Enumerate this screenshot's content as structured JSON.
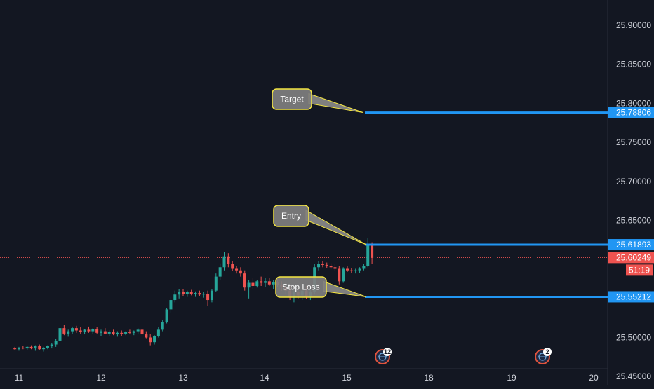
{
  "chart_data": {
    "type": "candlestick",
    "title": "",
    "xlabel": "",
    "ylabel": "",
    "x_tick_labels": [
      "11",
      "12",
      "13",
      "14",
      "15",
      "18",
      "19",
      "20"
    ],
    "y_tick_labels": [
      "25.45000",
      "25.50000",
      "25.55000",
      "25.60000",
      "25.65000",
      "25.70000",
      "25.75000",
      "25.80000",
      "25.85000",
      "25.90000"
    ],
    "ylim": [
      25.455,
      25.95
    ],
    "grid": false,
    "colors": {
      "background": "#131722",
      "up": "#26a69a",
      "down": "#ef5350",
      "level_line": "#2196f3",
      "callout_fill": "#7f7f7f",
      "callout_border": "#f4e542",
      "current_price": "#ef5350",
      "axis_text": "#d1d4dc"
    },
    "levels": [
      {
        "name": "Target",
        "value": 25.78806,
        "label": "25.78806"
      },
      {
        "name": "Entry",
        "value": 25.61893,
        "label": "25.61893"
      },
      {
        "name": "Stop Loss",
        "value": 25.55212,
        "label": "25.55212"
      }
    ],
    "current_price": {
      "value": 25.60249,
      "label": "25.60249",
      "countdown": "51:19"
    },
    "callouts": [
      "Target",
      "Entry",
      "Stop Loss"
    ],
    "event_badges": [
      {
        "day": "15.4",
        "count": "12"
      },
      {
        "day": "19.4",
        "count": "2"
      }
    ],
    "series": [
      {
        "candles": [
          [
            10.95,
            25.486,
            25.488,
            25.484,
            25.485
          ],
          [
            11.0,
            25.485,
            25.488,
            25.483,
            25.487
          ],
          [
            11.05,
            25.487,
            25.489,
            25.485,
            25.486
          ],
          [
            11.1,
            25.486,
            25.489,
            25.484,
            25.488
          ],
          [
            11.15,
            25.488,
            25.49,
            25.485,
            25.486
          ],
          [
            11.2,
            25.486,
            25.49,
            25.483,
            25.489
          ],
          [
            11.25,
            25.489,
            25.491,
            25.484,
            25.485
          ],
          [
            11.3,
            25.485,
            25.488,
            25.482,
            25.487
          ],
          [
            11.35,
            25.487,
            25.49,
            25.485,
            25.489
          ],
          [
            11.4,
            25.489,
            25.493,
            25.486,
            25.491
          ],
          [
            11.45,
            25.491,
            25.498,
            25.488,
            25.496
          ],
          [
            11.5,
            25.496,
            25.518,
            25.494,
            25.512
          ],
          [
            11.55,
            25.512,
            25.516,
            25.503,
            25.505
          ],
          [
            11.6,
            25.505,
            25.51,
            25.501,
            25.508
          ],
          [
            11.65,
            25.508,
            25.514,
            25.504,
            25.512
          ],
          [
            11.7,
            25.512,
            25.515,
            25.506,
            25.509
          ],
          [
            11.75,
            25.509,
            25.513,
            25.505,
            25.507
          ],
          [
            11.8,
            25.507,
            25.511,
            25.504,
            25.51
          ],
          [
            11.85,
            25.51,
            25.514,
            25.506,
            25.508
          ],
          [
            11.9,
            25.508,
            25.512,
            25.505,
            25.511
          ],
          [
            11.95,
            25.511,
            25.513,
            25.505,
            25.506
          ],
          [
            12.0,
            25.506,
            25.51,
            25.502,
            25.508
          ],
          [
            12.05,
            25.508,
            25.512,
            25.504,
            25.505
          ],
          [
            12.1,
            25.505,
            25.509,
            25.502,
            25.507
          ],
          [
            12.15,
            25.507,
            25.51,
            25.503,
            25.504
          ],
          [
            12.2,
            25.504,
            25.508,
            25.501,
            25.506
          ],
          [
            12.25,
            25.506,
            25.509,
            25.502,
            25.505
          ],
          [
            12.3,
            25.505,
            25.508,
            25.503,
            25.507
          ],
          [
            12.35,
            25.507,
            25.51,
            25.504,
            25.506
          ],
          [
            12.4,
            25.506,
            25.509,
            25.503,
            25.508
          ],
          [
            12.45,
            25.508,
            25.512,
            25.505,
            25.51
          ],
          [
            12.5,
            25.51,
            25.513,
            25.503,
            25.504
          ],
          [
            12.55,
            25.504,
            25.508,
            25.499,
            25.5
          ],
          [
            12.6,
            25.5,
            25.504,
            25.49,
            25.494
          ],
          [
            12.65,
            25.494,
            25.503,
            25.491,
            25.502
          ],
          [
            12.7,
            25.502,
            25.513,
            25.5,
            25.51
          ],
          [
            12.75,
            25.51,
            25.522,
            25.508,
            25.52
          ],
          [
            12.8,
            25.52,
            25.538,
            25.518,
            25.536
          ],
          [
            12.85,
            25.536,
            25.552,
            25.532,
            25.548
          ],
          [
            12.9,
            25.548,
            25.56,
            25.545,
            25.555
          ],
          [
            12.95,
            25.555,
            25.562,
            25.55,
            25.558
          ],
          [
            13.0,
            25.558,
            25.562,
            25.553,
            25.556
          ],
          [
            13.05,
            25.556,
            25.56,
            25.552,
            25.558
          ],
          [
            13.1,
            25.558,
            25.561,
            25.554,
            25.556
          ],
          [
            13.15,
            25.556,
            25.559,
            25.552,
            25.557
          ],
          [
            13.2,
            25.557,
            25.56,
            25.553,
            25.555
          ],
          [
            13.25,
            25.555,
            25.558,
            25.551,
            25.556
          ],
          [
            13.3,
            25.556,
            25.56,
            25.54,
            25.548
          ],
          [
            13.35,
            25.548,
            25.562,
            25.545,
            25.56
          ],
          [
            13.4,
            25.56,
            25.582,
            25.558,
            25.578
          ],
          [
            13.45,
            25.578,
            25.595,
            25.574,
            25.59
          ],
          [
            13.5,
            25.59,
            25.61,
            25.586,
            25.604
          ],
          [
            13.55,
            25.604,
            25.608,
            25.59,
            25.594
          ],
          [
            13.6,
            25.594,
            25.598,
            25.585,
            25.588
          ],
          [
            13.65,
            25.588,
            25.592,
            25.582,
            25.586
          ],
          [
            13.7,
            25.586,
            25.59,
            25.578,
            25.582
          ],
          [
            13.75,
            25.582,
            25.586,
            25.56,
            25.564
          ],
          [
            13.8,
            25.564,
            25.574,
            25.55,
            25.57
          ],
          [
            13.85,
            25.57,
            25.576,
            25.562,
            25.566
          ],
          [
            13.9,
            25.566,
            25.574,
            25.564,
            25.572
          ],
          [
            13.95,
            25.572,
            25.578,
            25.566,
            25.57
          ],
          [
            14.0,
            25.57,
            25.576,
            25.565,
            25.572
          ],
          [
            14.05,
            25.572,
            25.576,
            25.566,
            25.568
          ],
          [
            14.1,
            25.568,
            25.574,
            25.562,
            25.571
          ],
          [
            14.15,
            25.571,
            25.575,
            25.565,
            25.567
          ],
          [
            14.2,
            25.567,
            25.572,
            25.56,
            25.565
          ],
          [
            14.25,
            25.565,
            25.57,
            25.555,
            25.56
          ],
          [
            14.3,
            25.56,
            25.566,
            25.548,
            25.552
          ],
          [
            14.35,
            25.552,
            25.56,
            25.545,
            25.558
          ],
          [
            14.4,
            25.558,
            25.564,
            25.55,
            25.554
          ],
          [
            14.45,
            25.554,
            25.562,
            25.548,
            25.56
          ],
          [
            14.5,
            25.56,
            25.566,
            25.55,
            25.553
          ],
          [
            14.55,
            25.553,
            25.562,
            25.548,
            25.558
          ],
          [
            14.6,
            25.558,
            25.594,
            25.555,
            25.59
          ],
          [
            14.65,
            25.59,
            25.598,
            25.586,
            25.594
          ],
          [
            14.7,
            25.594,
            25.598,
            25.59,
            25.593
          ],
          [
            14.75,
            25.593,
            25.596,
            25.589,
            25.592
          ],
          [
            14.8,
            25.592,
            25.595,
            25.588,
            25.59
          ],
          [
            14.85,
            25.59,
            25.594,
            25.585,
            25.588
          ],
          [
            14.9,
            25.588,
            25.592,
            25.568,
            25.572
          ],
          [
            14.95,
            25.572,
            25.59,
            25.57,
            25.588
          ],
          [
            15.0,
            25.588,
            25.591,
            25.584,
            25.586
          ],
          [
            15.05,
            25.586,
            25.589,
            25.583,
            25.585
          ],
          [
            15.1,
            25.585,
            25.588,
            25.582,
            25.586
          ],
          [
            15.15,
            25.586,
            25.59,
            25.583,
            25.588
          ],
          [
            15.2,
            25.588,
            25.594,
            25.586,
            25.592
          ],
          [
            15.25,
            25.592,
            25.627,
            25.59,
            25.618
          ],
          [
            15.3,
            25.618,
            25.622,
            25.594,
            25.602
          ]
        ]
      }
    ]
  }
}
